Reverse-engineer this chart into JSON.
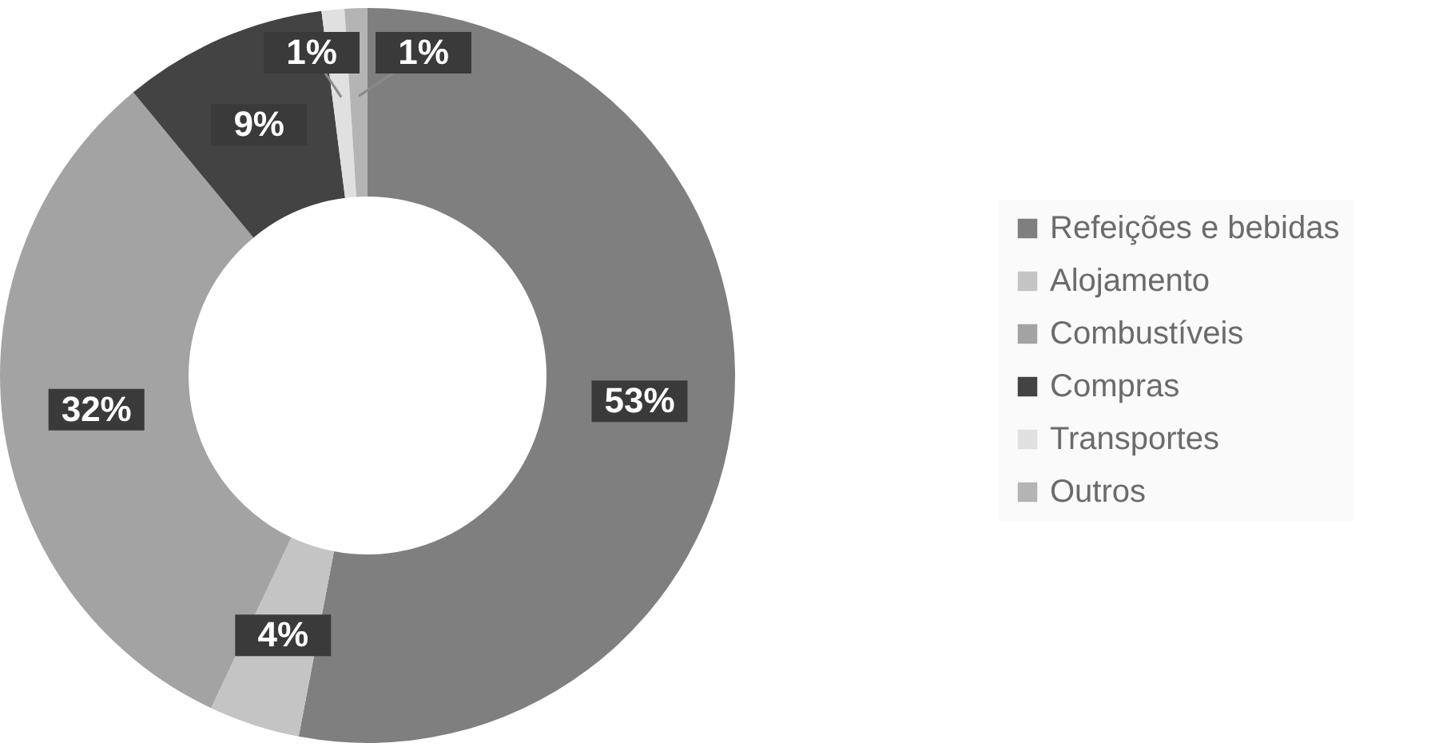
{
  "chart_data": {
    "type": "donut",
    "categories": [
      "Refeições e bebidas",
      "Alojamento",
      "Combustíveis",
      "Compras",
      "Transportes",
      "Outros"
    ],
    "values": [
      53,
      4,
      32,
      9,
      1,
      1
    ],
    "colors": [
      "#7f7f7f",
      "#c4c4c4",
      "#a3a3a3",
      "#434343",
      "#e0e0e0",
      "#b4b4b4"
    ],
    "value_labels": [
      "53%",
      "4%",
      "32%",
      "9%",
      "1%",
      "1%"
    ],
    "legend": "right"
  }
}
